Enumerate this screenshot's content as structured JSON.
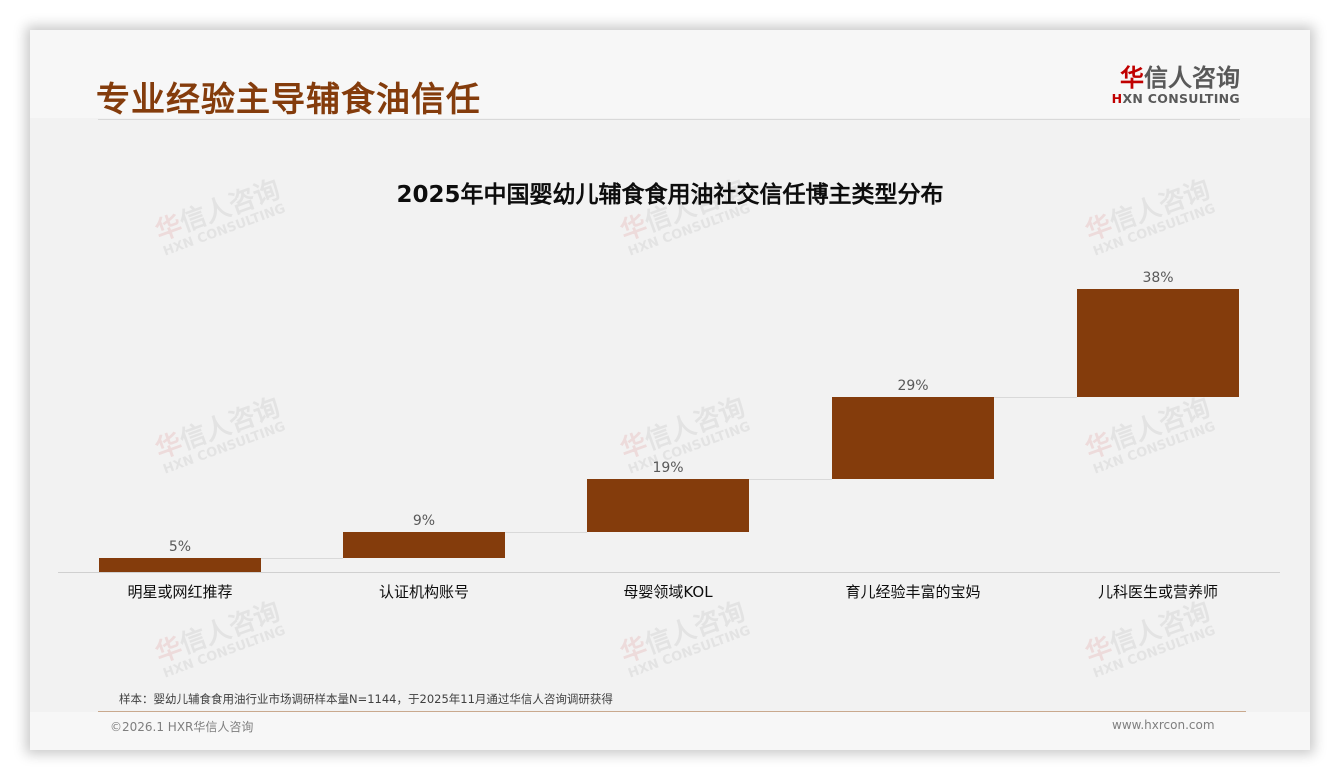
{
  "header": {
    "page_title": "专业经验主导辅食油信任",
    "logo": {
      "cn_accent": "华",
      "cn_rest": "信人咨询",
      "en_accent": "H",
      "en_rest": "XN CONSULTING"
    }
  },
  "watermark": {
    "cn_accent": "华",
    "cn_rest": "信人咨询",
    "en": "HXN CONSULTING"
  },
  "colors": {
    "bar": "#843c0c",
    "title": "#843c0c",
    "logo_accent": "#c00000",
    "background": "#f2f2f2"
  },
  "chart_data": {
    "type": "bar",
    "subtype": "waterfall",
    "title": "2025年中国婴幼儿辅食食用油社交信任博主类型分布",
    "categories": [
      "明星或网红推荐",
      "认证机构账号",
      "母婴领域KOL",
      "育儿经验丰富的宝妈",
      "儿科医生或营养师"
    ],
    "values": [
      5,
      9,
      19,
      29,
      38
    ],
    "value_labels": [
      "5%",
      "9%",
      "19%",
      "29%",
      "38%"
    ],
    "unit": "%",
    "cumulative": [
      5,
      14,
      33,
      62,
      100
    ],
    "xlabel": "",
    "ylabel": "",
    "ylim": [
      0,
      100
    ],
    "grid": false,
    "legend": null
  },
  "footer": {
    "note": "样本：婴幼儿辅食食用油行业市场调研样本量N=1144，于2025年11月通过华信人咨询调研获得",
    "copyright": "©2026.1 HXR华信人咨询",
    "website": "www.hxrcon.com"
  }
}
